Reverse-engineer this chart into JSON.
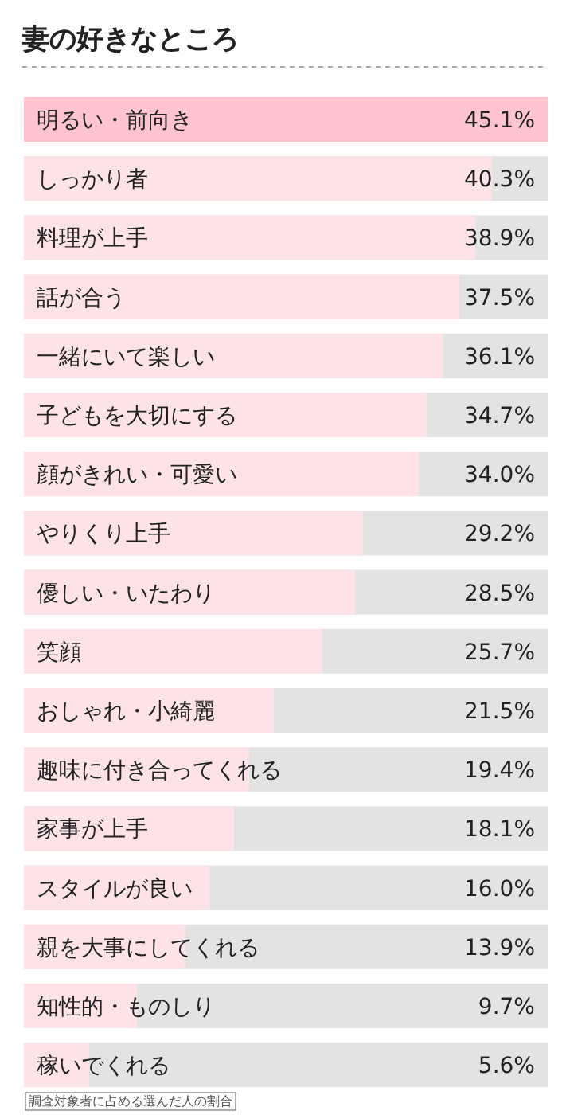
{
  "chart_data": {
    "type": "bar",
    "orientation": "horizontal",
    "title": "妻の好きなところ",
    "categories": [
      "明るい・前向き",
      "しっかり者",
      "料理が上手",
      "話が合う",
      "一緒にいて楽しい",
      "子どもを大切にする",
      "顔がきれい・可愛い",
      "やりくり上手",
      "優しい・いたわり",
      "笑顔",
      "おしゃれ・小綺麗",
      "趣味に付き合ってくれる",
      "家事が上手",
      "スタイルが良い",
      "親を大事にしてくれる",
      "知性的・ものしり",
      "稼いでくれる"
    ],
    "values": [
      45.1,
      40.3,
      38.9,
      37.5,
      36.1,
      34.7,
      34.0,
      29.2,
      28.5,
      25.7,
      21.5,
      19.4,
      18.1,
      16.0,
      13.9,
      9.7,
      5.6
    ],
    "colors": [
      "#ffc4cf",
      "#fde3e8",
      "#fde3e8",
      "#fde3e8",
      "#fde3e8",
      "#fde3e8",
      "#fde3e8",
      "#fde3e8",
      "#fde3e8",
      "#fde3e8",
      "#fde3e8",
      "#fde3e8",
      "#fde3e8",
      "#fde3e8",
      "#fde3e8",
      "#fde3e8",
      "#fde3e8"
    ],
    "value_labels": [
      "45.1%",
      "40.3%",
      "38.9%",
      "37.5%",
      "36.1%",
      "34.7%",
      "34.0%",
      "29.2%",
      "28.5%",
      "25.7%",
      "21.5%",
      "19.4%",
      "18.1%",
      "16.0%",
      "13.9%",
      "9.7%",
      "5.6%"
    ],
    "xlim": [
      0,
      45.1
    ],
    "annotations": [
      "調査対象者に占める選んだ人の割合"
    ]
  }
}
